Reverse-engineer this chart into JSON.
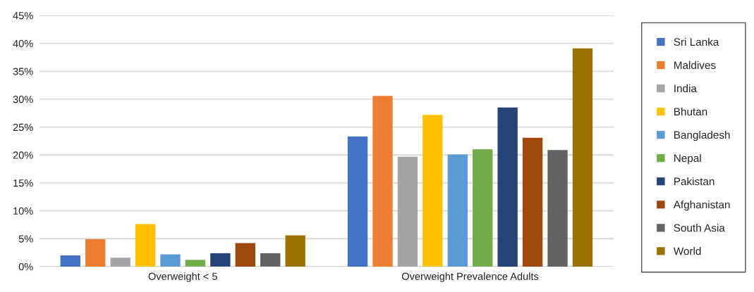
{
  "chart_data": {
    "type": "bar",
    "categories": [
      "Overweight < 5",
      "Overweight Prevalence Adults"
    ],
    "series": [
      {
        "name": "Sri Lanka",
        "color": "#4472c4",
        "values": [
          2.0,
          23.3
        ]
      },
      {
        "name": "Maldives",
        "color": "#ed7d31",
        "values": [
          4.9,
          30.6
        ]
      },
      {
        "name": "India",
        "color": "#a5a5a5",
        "values": [
          1.6,
          19.7
        ]
      },
      {
        "name": "Bhutan",
        "color": "#ffc000",
        "values": [
          7.6,
          27.2
        ]
      },
      {
        "name": "Bangladesh",
        "color": "#5b9bd5",
        "values": [
          2.2,
          20.1
        ]
      },
      {
        "name": "Nepal",
        "color": "#70ad47",
        "values": [
          1.2,
          21.0
        ]
      },
      {
        "name": "Pakistan",
        "color": "#264478",
        "values": [
          2.4,
          28.5
        ]
      },
      {
        "name": "Afghanistan",
        "color": "#9e480e",
        "values": [
          4.2,
          23.1
        ]
      },
      {
        "name": "South Asia",
        "color": "#636363",
        "values": [
          2.4,
          20.9
        ]
      },
      {
        "name": "World",
        "color": "#997300",
        "values": [
          5.6,
          39.1
        ]
      }
    ],
    "ylim": [
      0,
      45
    ],
    "yticks": [
      {
        "value": 0,
        "label": "0%"
      },
      {
        "value": 5,
        "label": "5%"
      },
      {
        "value": 10,
        "label": "10%"
      },
      {
        "value": 15,
        "label": "15%"
      },
      {
        "value": 20,
        "label": "20%"
      },
      {
        "value": 25,
        "label": "25%"
      },
      {
        "value": 30,
        "label": "30%"
      },
      {
        "value": 35,
        "label": "35%"
      },
      {
        "value": 40,
        "label": "40%"
      },
      {
        "value": 45,
        "label": "45%"
      }
    ],
    "grid": "y",
    "legend": "right"
  }
}
